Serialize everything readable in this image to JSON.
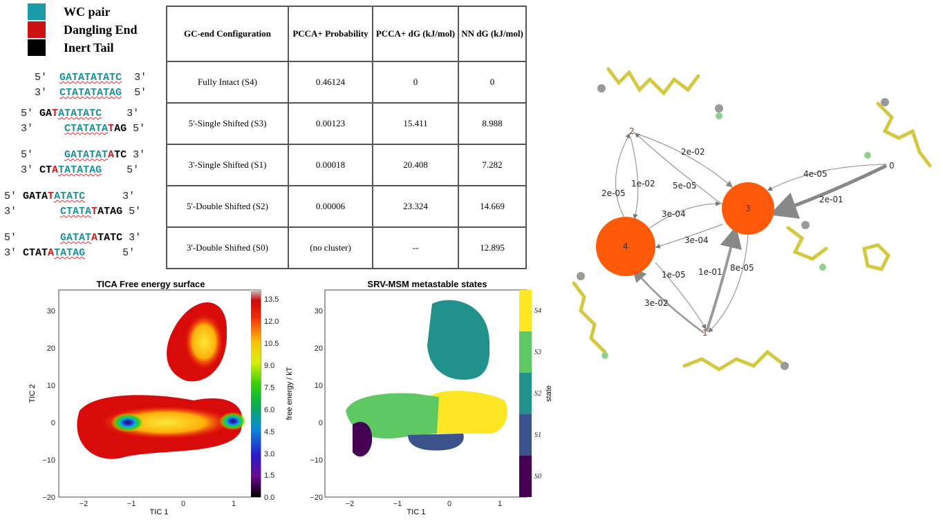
{
  "legend": [
    {
      "label": "WC pair",
      "color": "#1a9aa6"
    },
    {
      "label": "Dangling End",
      "color": "#cc1111"
    },
    {
      "label": "Inert Tail",
      "color": "#000000"
    }
  ],
  "dna_pairs": [
    {
      "top": "5′  GATATATATC  3′",
      "bottom": "3′  CTATATATAG  5′"
    },
    {
      "top": "5′ GATATATATC   3′",
      "bottom": "3′    CTATATATAG 5′"
    },
    {
      "top": "5′   GATATATATC 3′",
      "bottom": "3′ CTATATATAG   5′"
    },
    {
      "top": "5′ GATATATATC  3′",
      "bottom": "3′   CTATATATAG 5′"
    },
    {
      "top": "5′    GATATATATC 3′",
      "bottom": "3′ CTATATATAG    5′"
    }
  ],
  "table": {
    "headers": [
      "GC-end Configuration",
      "PCCA+ Probability",
      "PCCA+ dG (kJ/mol)",
      "NN dG (kJ/mol)"
    ],
    "rows": [
      [
        "Fully Intact (S4)",
        "0.46124",
        "0",
        "0"
      ],
      [
        "5'-Single Shifted  (S3)",
        "0.00123",
        "15.411",
        "8.988"
      ],
      [
        "3'-Single Shifted (S1)",
        "0.00018",
        "20.408",
        "7.282"
      ],
      [
        "5'-Double Shifted (S2)",
        "0.00006",
        "23.324",
        "14.669"
      ],
      [
        "3'-Double Shifted (S0)",
        "(no cluster)",
        "--",
        "12.895"
      ]
    ]
  },
  "chart_data": [
    {
      "type": "heatmap",
      "title": "TICA Free energy surface",
      "xlabel": "TIC 1",
      "ylabel": "TIC 2",
      "xlim": [
        -2.3,
        1.1
      ],
      "ylim": [
        -20,
        35
      ],
      "xticks": [
        "−2",
        "−1",
        "0",
        "1"
      ],
      "yticks": [
        "−20",
        "−10",
        "0",
        "10",
        "20",
        "30"
      ],
      "colorbar": {
        "label": "free energy / kT",
        "ticks": [
          "0.0",
          "1.5",
          "3.0",
          "4.5",
          "6.0",
          "7.5",
          "9.0",
          "10.5",
          "12.0",
          "13.5"
        ],
        "range": [
          0,
          14
        ]
      }
    },
    {
      "type": "scatter",
      "title": "SRV-MSM metastable states",
      "xlabel": "TIC 1",
      "ylabel": "",
      "xlim": [
        -2.3,
        1.1
      ],
      "ylim": [
        -20,
        35
      ],
      "xticks": [
        "−2",
        "−1",
        "0",
        "1"
      ],
      "yticks": [
        "−20",
        "−10",
        "0",
        "10",
        "20",
        "30"
      ],
      "colorbar": {
        "label": "state",
        "ticks": [
          "S0",
          "S1",
          "S2",
          "S3",
          "S4"
        ],
        "colors": [
          "#440154",
          "#3b528b",
          "#21918c",
          "#5ec962",
          "#fde725"
        ]
      }
    }
  ],
  "network": {
    "nodes": [
      "0",
      "1",
      "2",
      "3",
      "4"
    ],
    "edges": [
      {
        "label": "2e-02"
      },
      {
        "label": "5e-05"
      },
      {
        "label": "4e-05"
      },
      {
        "label": "2e-01"
      },
      {
        "label": "1e-02"
      },
      {
        "label": "2e-05"
      },
      {
        "label": "3e-04"
      },
      {
        "label": "3e-04"
      },
      {
        "label": "1e-05"
      },
      {
        "label": "3e-02"
      },
      {
        "label": "1e-01"
      },
      {
        "label": "8e-05"
      }
    ],
    "node_color": "#ff5a0a"
  }
}
